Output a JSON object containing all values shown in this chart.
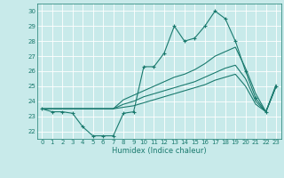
{
  "xlabel": "Humidex (Indice chaleur)",
  "background_color": "#c8eaea",
  "grid_color": "#ffffff",
  "line_color": "#1a7a6e",
  "ylim": [
    21.5,
    30.5
  ],
  "xlim": [
    -0.5,
    23.5
  ],
  "yticks": [
    22,
    23,
    24,
    25,
    26,
    27,
    28,
    29,
    30
  ],
  "xticks": [
    0,
    1,
    2,
    3,
    4,
    5,
    6,
    7,
    8,
    9,
    10,
    11,
    12,
    13,
    14,
    15,
    16,
    17,
    18,
    19,
    20,
    21,
    22,
    23
  ],
  "series_markers": [
    [
      23.5,
      23.3,
      23.3,
      23.2,
      22.3,
      21.7,
      21.7,
      21.7,
      23.2,
      23.3,
      26.3,
      26.3,
      27.2,
      29.0,
      28.0,
      28.2,
      29.0,
      30.0,
      29.5,
      28.0,
      26.0,
      24.2,
      23.3,
      25.0
    ]
  ],
  "series_lines": [
    [
      23.5,
      23.5,
      23.5,
      23.5,
      23.5,
      23.5,
      23.5,
      23.5,
      24.1,
      24.4,
      24.7,
      25.0,
      25.3,
      25.6,
      25.8,
      26.1,
      26.5,
      27.0,
      27.3,
      27.6,
      26.2,
      24.5,
      23.3,
      25.1
    ],
    [
      23.5,
      23.5,
      23.5,
      23.5,
      23.5,
      23.5,
      23.5,
      23.5,
      23.8,
      24.0,
      24.3,
      24.5,
      24.7,
      24.9,
      25.1,
      25.3,
      25.6,
      25.9,
      26.2,
      26.4,
      25.5,
      24.0,
      23.3,
      25.0
    ],
    [
      23.5,
      23.5,
      23.5,
      23.5,
      23.5,
      23.5,
      23.5,
      23.5,
      23.6,
      23.7,
      23.9,
      24.1,
      24.3,
      24.5,
      24.7,
      24.9,
      25.1,
      25.4,
      25.6,
      25.8,
      25.0,
      23.8,
      23.3,
      25.0
    ]
  ]
}
